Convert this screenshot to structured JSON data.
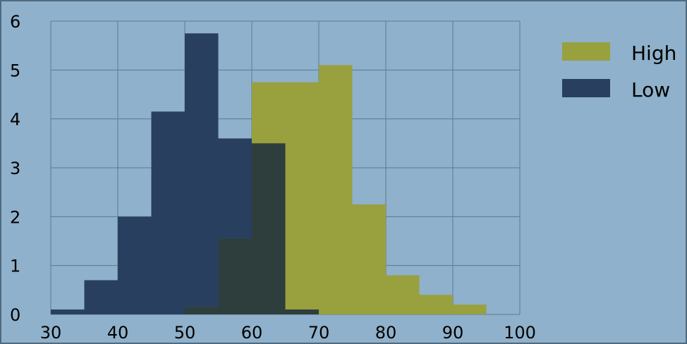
{
  "chart_data": {
    "type": "histogram",
    "bin_width": 5,
    "xlim": [
      30,
      100
    ],
    "ylim": [
      0,
      6
    ],
    "x_ticks": [
      "30",
      "40",
      "50",
      "60",
      "70",
      "80",
      "90",
      "100"
    ],
    "y_ticks": [
      "0",
      "1",
      "2",
      "3",
      "4",
      "5",
      "6"
    ],
    "grid": true,
    "legend_position": "top-right",
    "overlap_color": "#2e3e3c",
    "series": [
      {
        "name": "Low",
        "color": "#283f60",
        "bins": [
          {
            "x0": 30,
            "x1": 35,
            "value": 0.1
          },
          {
            "x0": 35,
            "x1": 40,
            "value": 0.7
          },
          {
            "x0": 40,
            "x1": 45,
            "value": 2.0
          },
          {
            "x0": 45,
            "x1": 50,
            "value": 4.15
          },
          {
            "x0": 50,
            "x1": 55,
            "value": 5.75
          },
          {
            "x0": 55,
            "x1": 60,
            "value": 3.6
          },
          {
            "x0": 60,
            "x1": 65,
            "value": 3.5
          },
          {
            "x0": 65,
            "x1": 70,
            "value": 0.1
          }
        ]
      },
      {
        "name": "High",
        "color": "#99a03e",
        "bins": [
          {
            "x0": 50,
            "x1": 55,
            "value": 0.15
          },
          {
            "x0": 55,
            "x1": 60,
            "value": 1.55
          },
          {
            "x0": 60,
            "x1": 65,
            "value": 4.75
          },
          {
            "x0": 65,
            "x1": 70,
            "value": 4.75
          },
          {
            "x0": 70,
            "x1": 75,
            "value": 5.1
          },
          {
            "x0": 75,
            "x1": 80,
            "value": 2.25
          },
          {
            "x0": 80,
            "x1": 85,
            "value": 0.8
          },
          {
            "x0": 85,
            "x1": 90,
            "value": 0.4
          },
          {
            "x0": 90,
            "x1": 95,
            "value": 0.2
          }
        ]
      }
    ]
  },
  "legend": {
    "high_label": "High",
    "high_color": "#99a03e",
    "low_label": "Low",
    "low_color": "#283f60"
  }
}
